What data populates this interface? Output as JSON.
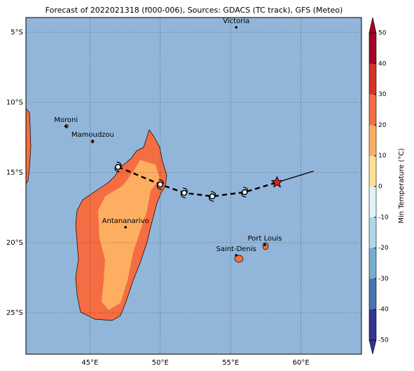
{
  "title": "Forecast of 2022021318 (f000-006), Sources: GDACS (TC track), GFS (Meteo)",
  "map": {
    "lon_range": [
      40.45,
      64.3
    ],
    "lat_range": [
      -27.95,
      -3.95
    ],
    "lon_ticks": [
      {
        "value": 45,
        "label": "45°E"
      },
      {
        "value": 50,
        "label": "50°E"
      },
      {
        "value": 55,
        "label": "55°E"
      },
      {
        "value": 60,
        "label": "60°E"
      }
    ],
    "lat_ticks": [
      {
        "value": -5,
        "label": "5°S"
      },
      {
        "value": -10,
        "label": "10°S"
      },
      {
        "value": -15,
        "label": "15°S"
      },
      {
        "value": -20,
        "label": "20°S"
      },
      {
        "value": -25,
        "label": "25°S"
      }
    ],
    "cities": [
      {
        "name": "Victoria",
        "lon": 55.4,
        "lat": -4.65
      },
      {
        "name": "Moroni",
        "lon": 43.3,
        "lat": -11.7
      },
      {
        "name": "Mamoudzou",
        "lon": 45.2,
        "lat": -12.75
      },
      {
        "name": "Antananarivo",
        "lon": 47.53,
        "lat": -18.9
      },
      {
        "name": "Port Louis",
        "lon": 57.43,
        "lat": -20.15
      },
      {
        "name": "Saint-Denis",
        "lon": 55.4,
        "lat": -20.9
      }
    ],
    "track": [
      {
        "lon": 47.0,
        "lat": -14.6
      },
      {
        "lon": 50.0,
        "lat": -15.85
      },
      {
        "lon": 51.7,
        "lat": -16.45
      },
      {
        "lon": 53.7,
        "lat": -16.7
      },
      {
        "lon": 56.0,
        "lat": -16.4
      },
      {
        "lon": 58.3,
        "lat": -15.7
      },
      {
        "lon": 60.9,
        "lat": -14.9
      }
    ]
  },
  "colorbar": {
    "label": "Min Temperature (°C)",
    "range": [
      -50,
      50
    ],
    "ticks": [
      50,
      40,
      30,
      20,
      10,
      0,
      -10,
      -20,
      -30,
      -40,
      -50
    ],
    "colors": [
      "#a50026",
      "#d73027",
      "#f46d43",
      "#fdae61",
      "#fee090",
      "#e0f3f8",
      "#abd9e9",
      "#74add1",
      "#4575b4",
      "#313695"
    ]
  }
}
